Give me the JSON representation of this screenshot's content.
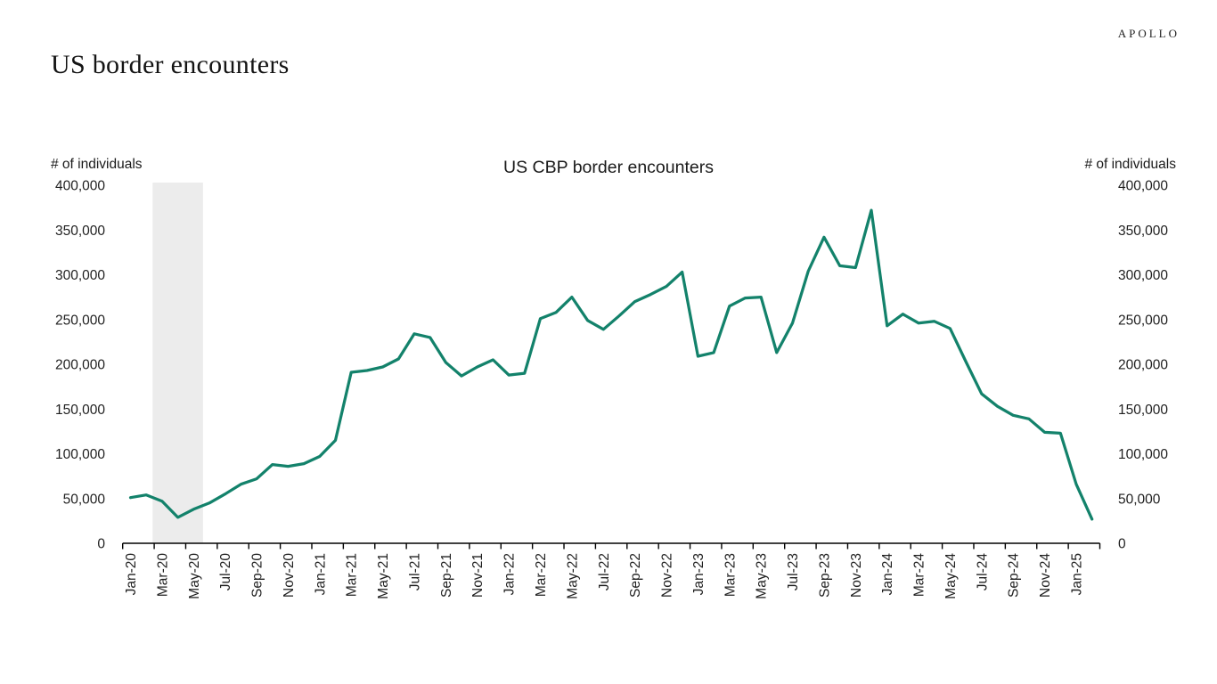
{
  "header": {
    "title": "US border encounters",
    "brand": "APOLLO"
  },
  "chart": {
    "title": "US CBP border encounters",
    "left_axis_title": "# of individuals",
    "right_axis_title": "# of individuals"
  },
  "colors": {
    "line": "#13826B",
    "recession_band": "#ECECEC",
    "axis": "#000000",
    "text": "#1f1f1f",
    "background": "#ffffff"
  },
  "chart_data": {
    "type": "line",
    "title": "US CBP border encounters",
    "xlabel": "",
    "ylabel": "# of individuals",
    "ylim": [
      0,
      400000
    ],
    "y_tick_step": 50000,
    "y_tick_labels": [
      "0",
      "50,000",
      "100,000",
      "150,000",
      "200,000",
      "250,000",
      "300,000",
      "350,000",
      "400,000"
    ],
    "grid": false,
    "legend_position": "none",
    "line_color": "#13826B",
    "recession_band": {
      "start": "Feb-20",
      "end": "Apr-20",
      "color": "#ECECEC"
    },
    "x_tick_every": 2,
    "x_tick_labels": [
      "Jan-20",
      "Mar-20",
      "May-20",
      "Jul-20",
      "Sep-20",
      "Nov-20",
      "Jan-21",
      "Mar-21",
      "May-21",
      "Jul-21",
      "Sep-21",
      "Nov-21",
      "Jan-22",
      "Mar-22",
      "May-22",
      "Jul-22",
      "Sep-22",
      "Nov-22",
      "Jan-23",
      "Mar-23",
      "May-23",
      "Jul-23",
      "Sep-23",
      "Nov-23",
      "Jan-24",
      "Mar-24",
      "May-24",
      "Jul-24",
      "Sep-24",
      "Nov-24",
      "Jan-25"
    ],
    "x": [
      "Jan-20",
      "Feb-20",
      "Mar-20",
      "Apr-20",
      "May-20",
      "Jun-20",
      "Jul-20",
      "Aug-20",
      "Sep-20",
      "Oct-20",
      "Nov-20",
      "Dec-20",
      "Jan-21",
      "Feb-21",
      "Mar-21",
      "Apr-21",
      "May-21",
      "Jun-21",
      "Jul-21",
      "Aug-21",
      "Sep-21",
      "Oct-21",
      "Nov-21",
      "Dec-21",
      "Jan-22",
      "Feb-22",
      "Mar-22",
      "Apr-22",
      "May-22",
      "Jun-22",
      "Jul-22",
      "Aug-22",
      "Sep-22",
      "Oct-22",
      "Nov-22",
      "Dec-22",
      "Jan-23",
      "Feb-23",
      "Mar-23",
      "Apr-23",
      "May-23",
      "Jun-23",
      "Jul-23",
      "Aug-23",
      "Sep-23",
      "Oct-23",
      "Nov-23",
      "Dec-23",
      "Jan-24",
      "Feb-24",
      "Mar-24",
      "Apr-24",
      "May-24",
      "Jun-24",
      "Jul-24",
      "Aug-24",
      "Sep-24",
      "Oct-24",
      "Nov-24",
      "Dec-24",
      "Jan-25",
      "Feb-25"
    ],
    "values": [
      51000,
      54000,
      47000,
      29000,
      38000,
      45000,
      55000,
      66000,
      72000,
      88000,
      86000,
      89000,
      97000,
      115000,
      191000,
      193000,
      197000,
      206000,
      234000,
      230000,
      202000,
      187000,
      197000,
      205000,
      188000,
      190000,
      251000,
      258000,
      275000,
      249000,
      239000,
      254000,
      270000,
      278000,
      287000,
      303000,
      209000,
      213000,
      265000,
      274000,
      275000,
      213000,
      246000,
      304000,
      342000,
      310000,
      308000,
      372000,
      243000,
      256000,
      246000,
      248000,
      240000,
      203000,
      167000,
      153000,
      143000,
      139000,
      124000,
      123000,
      66000,
      27000
    ]
  }
}
